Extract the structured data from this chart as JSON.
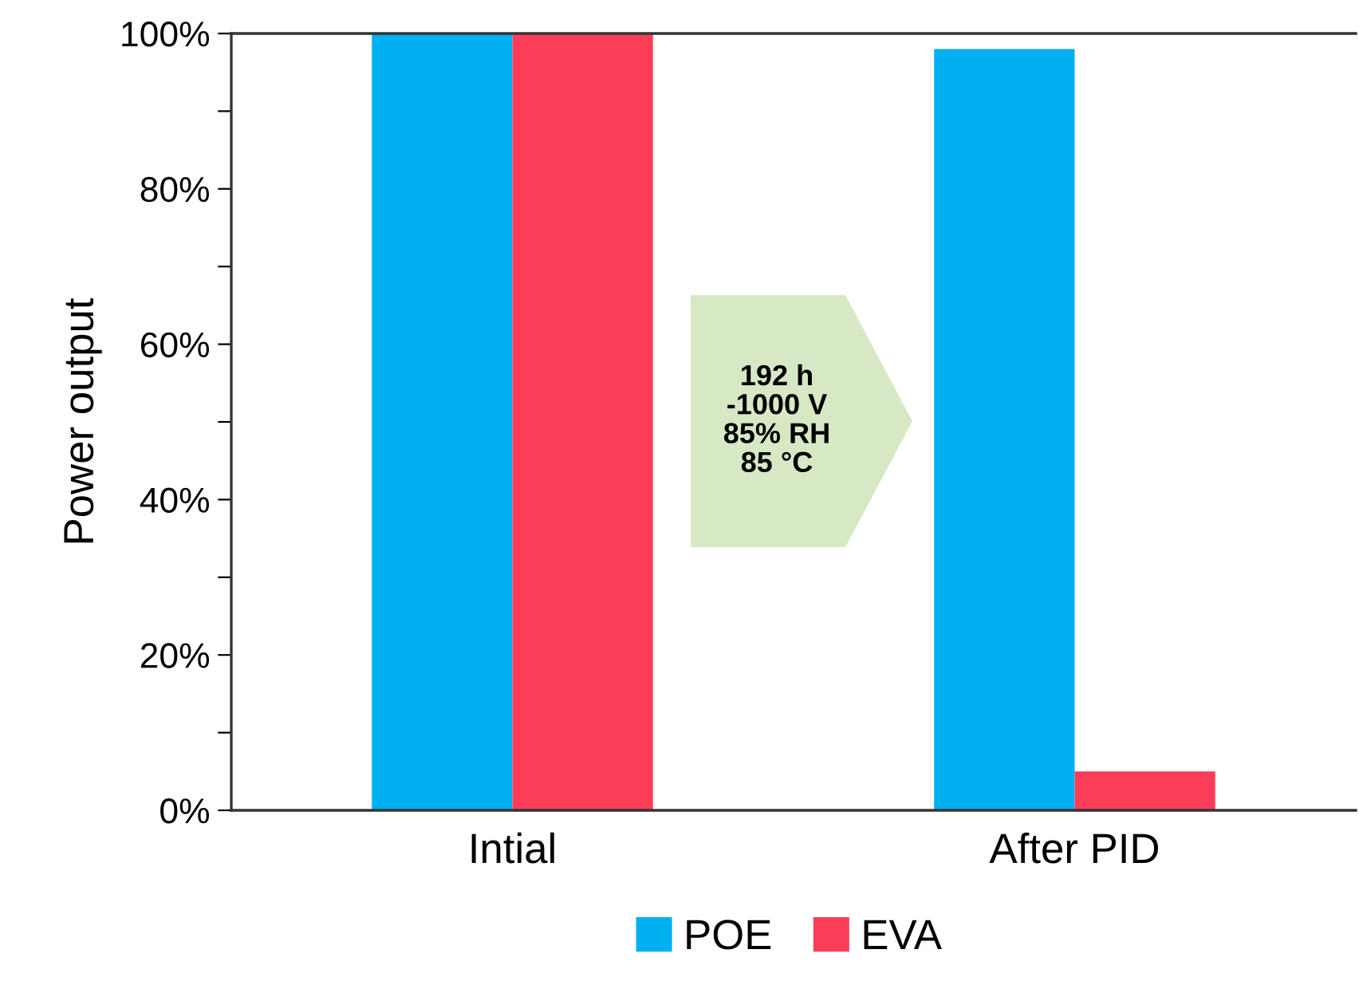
{
  "chart_data": {
    "type": "bar",
    "ylabel": "Power output",
    "categories": [
      "Intial",
      "After PID"
    ],
    "series": [
      {
        "name": "POE",
        "color": "#00b0f0",
        "values": [
          100,
          98
        ]
      },
      {
        "name": "EVA",
        "color": "#fc3d58",
        "values": [
          100,
          5
        ]
      }
    ],
    "ylim": [
      0,
      100
    ],
    "yticks": [
      {
        "value": 0,
        "label": "0%"
      },
      {
        "value": 10,
        "label": null
      },
      {
        "value": 20,
        "label": "20%"
      },
      {
        "value": 30,
        "label": null
      },
      {
        "value": 40,
        "label": "40%"
      },
      {
        "value": 50,
        "label": null
      },
      {
        "value": 60,
        "label": "60%"
      },
      {
        "value": 70,
        "label": null
      },
      {
        "value": 80,
        "label": "80%"
      },
      {
        "value": 90,
        "label": null
      },
      {
        "value": 100,
        "label": "100%"
      }
    ],
    "annotations": [
      "192 h\n-1000 V\n85% RH\n85 °C"
    ],
    "grid": false,
    "legend": "bottom"
  }
}
